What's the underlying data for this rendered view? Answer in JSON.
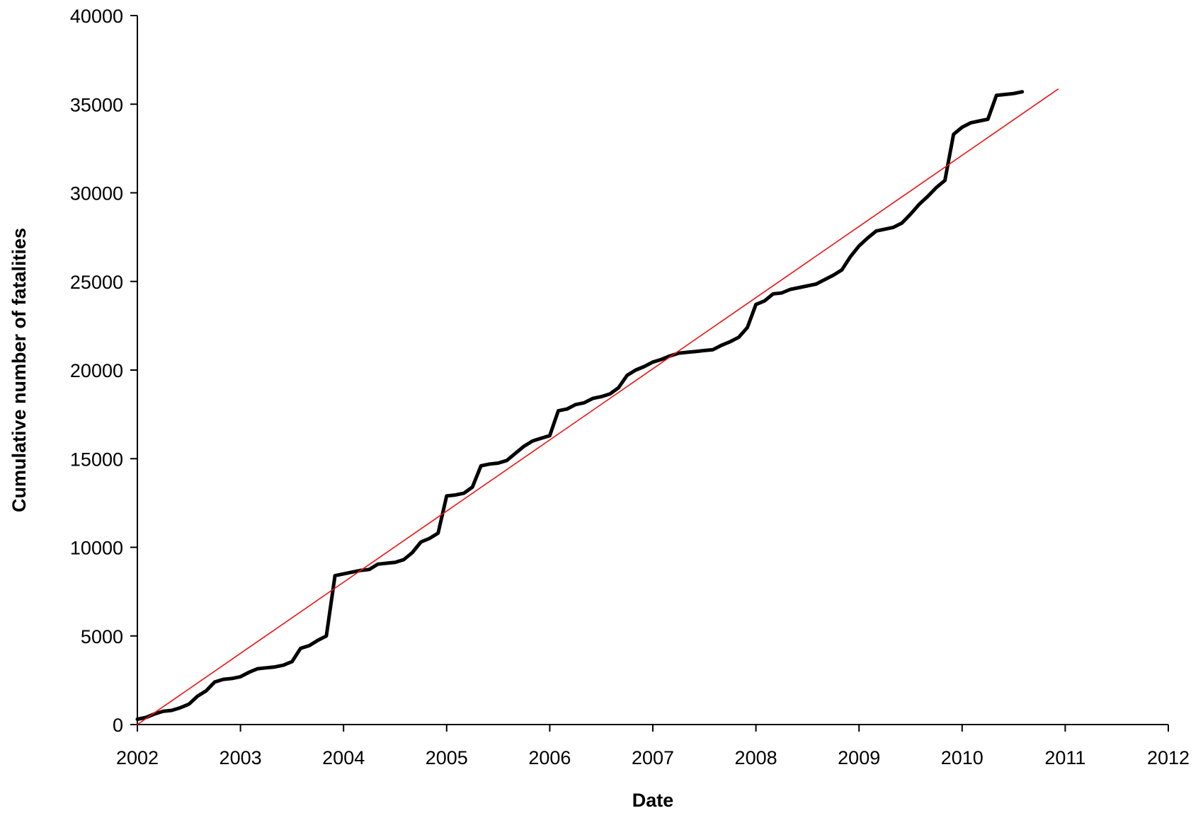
{
  "chart_data": {
    "type": "line",
    "title": "",
    "xlabel": "Date",
    "ylabel": "Cumulative number of fatalities",
    "xlim": [
      2002,
      2012
    ],
    "ylim": [
      0,
      40000
    ],
    "x_ticks": [
      "2002",
      "2003",
      "2004",
      "2005",
      "2006",
      "2007",
      "2008",
      "2009",
      "2010",
      "2011",
      "2012"
    ],
    "y_ticks": [
      "0",
      "5000",
      "10000",
      "15000",
      "20000",
      "25000",
      "30000",
      "35000",
      "40000"
    ],
    "grid": false,
    "legend": "none",
    "colors": {
      "observed": "#000000",
      "trend": "#ee1111",
      "axis": "#000000"
    },
    "series": [
      {
        "role": "observed",
        "x": [
          2002.0,
          2002.083,
          2002.167,
          2002.25,
          2002.333,
          2002.417,
          2002.5,
          2002.583,
          2002.667,
          2002.75,
          2002.833,
          2002.917,
          2003.0,
          2003.083,
          2003.167,
          2003.25,
          2003.333,
          2003.417,
          2003.5,
          2003.583,
          2003.667,
          2003.75,
          2003.833,
          2003.917,
          2004.0,
          2004.083,
          2004.167,
          2004.25,
          2004.333,
          2004.417,
          2004.5,
          2004.583,
          2004.667,
          2004.75,
          2004.833,
          2004.917,
          2005.0,
          2005.083,
          2005.167,
          2005.25,
          2005.333,
          2005.417,
          2005.5,
          2005.583,
          2005.667,
          2005.75,
          2005.833,
          2005.917,
          2006.0,
          2006.083,
          2006.167,
          2006.25,
          2006.333,
          2006.417,
          2006.5,
          2006.583,
          2006.667,
          2006.75,
          2006.833,
          2006.917,
          2007.0,
          2007.083,
          2007.167,
          2007.25,
          2007.333,
          2007.417,
          2007.5,
          2007.583,
          2007.667,
          2007.75,
          2007.833,
          2007.917,
          2008.0,
          2008.083,
          2008.167,
          2008.25,
          2008.333,
          2008.417,
          2008.5,
          2008.583,
          2008.667,
          2008.75,
          2008.833,
          2008.917,
          2009.0,
          2009.083,
          2009.167,
          2009.25,
          2009.333,
          2009.417,
          2009.5,
          2009.583,
          2009.667,
          2009.75,
          2009.833,
          2009.917,
          2010.0,
          2010.083,
          2010.167,
          2010.25,
          2010.333,
          2010.417,
          2010.5,
          2010.583
        ],
        "y": [
          300,
          400,
          600,
          750,
          800,
          950,
          1150,
          1600,
          1900,
          2400,
          2550,
          2600,
          2700,
          2950,
          3150,
          3200,
          3250,
          3350,
          3550,
          4300,
          4450,
          4750,
          5000,
          8400,
          8500,
          8600,
          8700,
          8750,
          9050,
          9100,
          9150,
          9300,
          9700,
          10300,
          10500,
          10800,
          12900,
          12950,
          13050,
          13400,
          14600,
          14700,
          14750,
          14900,
          15300,
          15700,
          16000,
          16150,
          16300,
          17700,
          17800,
          18050,
          18150,
          18400,
          18500,
          18650,
          19000,
          19700,
          20000,
          20200,
          20450,
          20600,
          20800,
          20950,
          21000,
          21050,
          21100,
          21150,
          21400,
          21600,
          21850,
          22400,
          23700,
          23900,
          24300,
          24350,
          24550,
          24650,
          24750,
          24850,
          25100,
          25350,
          25650,
          26400,
          27000,
          27450,
          27850,
          27950,
          28050,
          28300,
          28800,
          29350,
          29800,
          30300,
          30700,
          33300,
          33700,
          33950,
          34050,
          34150,
          35500,
          35550,
          35600,
          35700
        ]
      },
      {
        "role": "trend",
        "x": [
          2002.0,
          2010.93
        ],
        "y": [
          0,
          35850
        ]
      }
    ]
  }
}
